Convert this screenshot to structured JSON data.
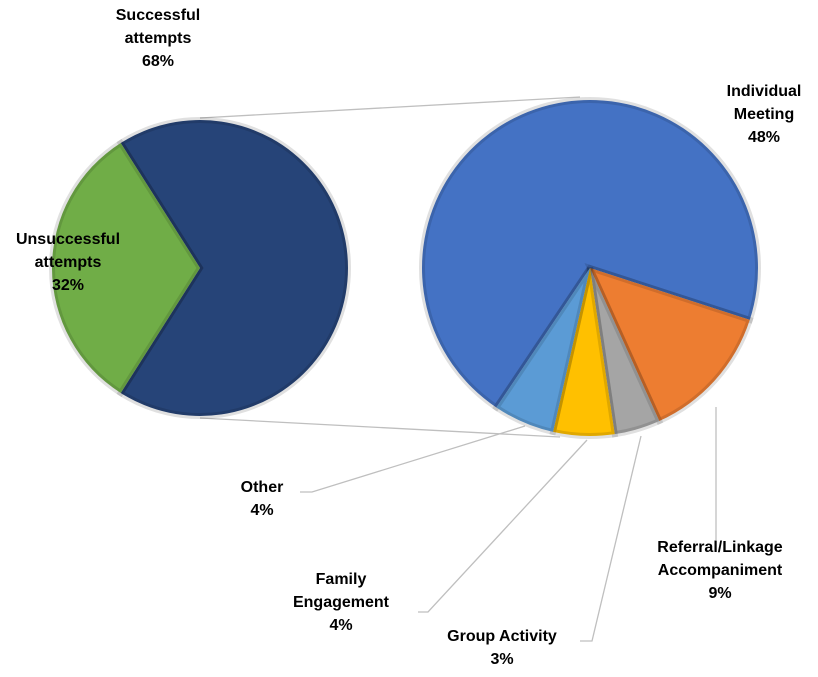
{
  "chart_data": {
    "type": "pie-of-pie",
    "pies": [
      {
        "categories": [
          "Successful attempts",
          "Unsuccessful attempts"
        ],
        "values": [
          68,
          32
        ],
        "value_labels": [
          "68%",
          "32%"
        ],
        "colors": [
          "#264478",
          "#70ad47"
        ]
      },
      {
        "categories": [
          "Individual Meeting",
          "Referral/Linkage Accompaniment",
          "Group Activity",
          "Family Engagement",
          "Other"
        ],
        "values": [
          48,
          9,
          3,
          4,
          4
        ],
        "value_labels": [
          "48%",
          "9%",
          "3%",
          "4%",
          "4%"
        ],
        "colors": [
          "#4472c4",
          "#ed7d31",
          "#a5a5a5",
          "#ffc000",
          "#5b9bd5"
        ]
      }
    ]
  }
}
